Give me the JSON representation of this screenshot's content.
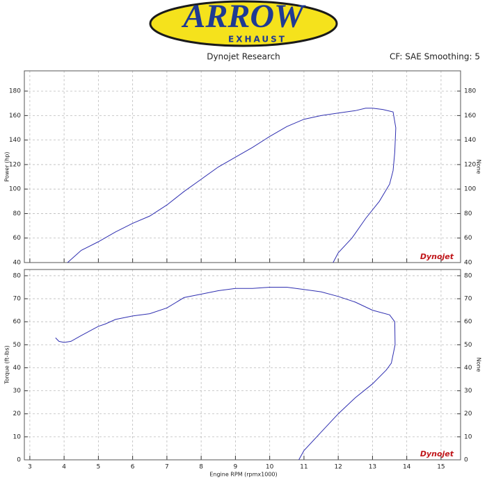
{
  "header": {
    "logo": "ARROW",
    "logo_sub": "EXHAUST",
    "center": "Dynojet Research",
    "right": "CF: SAE Smoothing: 5"
  },
  "chart_data": [
    {
      "type": "line",
      "ylabel": "Power (hp)",
      "y2label": "None",
      "watermark": "Dynojet",
      "xlim": [
        2.84,
        15.57
      ],
      "ylim": [
        40,
        196.5
      ],
      "xticks": [
        3,
        4,
        5,
        6,
        7,
        8,
        9,
        10,
        11,
        12,
        13,
        14,
        15
      ],
      "yticks": [
        40,
        60,
        80,
        100,
        120,
        140,
        160,
        180
      ],
      "x_tick_labels": false,
      "grid": true,
      "series": [
        {
          "color": "#2e2eb0",
          "x": [
            4.1,
            4.5,
            5,
            5.5,
            6,
            6.5,
            7,
            7.5,
            8,
            8.5,
            9,
            9.5,
            10,
            10.5,
            11,
            11.5,
            12,
            12.5,
            12.8,
            13,
            13.3,
            13.6,
            13.68,
            13.65,
            13.6,
            13.5,
            13.2,
            12.8,
            12.4,
            12,
            11.85
          ],
          "values": [
            40,
            50,
            57,
            65,
            72,
            78,
            87,
            98,
            108,
            118,
            126,
            134,
            143,
            151,
            157,
            160,
            162,
            164,
            166,
            166,
            165,
            163,
            150,
            130,
            115,
            104,
            90,
            76,
            60,
            48,
            40
          ]
        }
      ]
    },
    {
      "type": "line",
      "ylabel": "Torque (ft-lbs)",
      "y2label": "None",
      "xlabel": "Engine RPM (rpmx1000)",
      "watermark": "Dynojet",
      "xlim": [
        2.84,
        15.57
      ],
      "ylim": [
        0,
        82.7
      ],
      "xticks": [
        3,
        4,
        5,
        6,
        7,
        8,
        9,
        10,
        11,
        12,
        13,
        14,
        15
      ],
      "yticks": [
        0,
        10,
        20,
        30,
        40,
        50,
        60,
        70,
        80
      ],
      "x_tick_labels": true,
      "grid": true,
      "series": [
        {
          "color": "#2e2eb0",
          "x": [
            3.75,
            3.85,
            4.0,
            4.2,
            4.5,
            5,
            5.2,
            5.5,
            6,
            6.5,
            7,
            7.5,
            8,
            8.5,
            9,
            9.5,
            10,
            10.5,
            11,
            11.5,
            12,
            12.5,
            13,
            13.5,
            13.65,
            13.66,
            13.55,
            13.4,
            13,
            12.5,
            12,
            11.5,
            11,
            10.85
          ],
          "values": [
            53,
            51.5,
            51,
            51.5,
            54,
            58,
            59,
            61,
            62.5,
            63.5,
            66,
            70.5,
            72,
            73.5,
            74.5,
            74.5,
            75,
            75,
            74,
            73,
            71,
            68.5,
            65,
            63,
            60,
            50,
            42,
            39,
            33,
            27,
            20,
            12,
            4,
            0
          ]
        }
      ]
    }
  ]
}
